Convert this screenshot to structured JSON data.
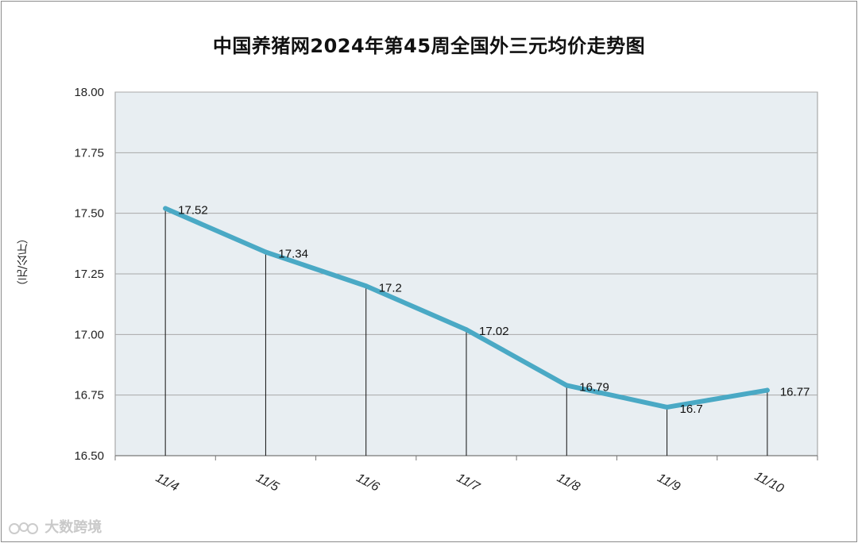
{
  "title": "中国养猪网2024年第45周全国外三元均价走势图",
  "watermark": "大数跨境",
  "colors": {
    "line": "#4aa9c5",
    "plot_bg": "#e8eef2",
    "grid": "#a8a8a8",
    "drop": "#111111"
  },
  "chart_data": {
    "type": "line",
    "title": "中国养猪网2024年第45周全国外三元均价走势图",
    "xlabel": "",
    "ylabel": "（元/公斤）",
    "categories": [
      "11/4",
      "11/5",
      "11/6",
      "11/7",
      "11/8",
      "11/9",
      "11/10"
    ],
    "values": [
      17.52,
      17.34,
      17.2,
      17.02,
      16.79,
      16.7,
      16.77
    ],
    "data_labels": [
      "17.52",
      "17.34",
      "17.2",
      "17.02",
      "16.79",
      "16.7",
      "16.77"
    ],
    "ylim": [
      16.5,
      18.0
    ],
    "yticks": [
      "16.50",
      "16.75",
      "17.00",
      "17.25",
      "17.50",
      "17.75",
      "18.00"
    ],
    "grid": true,
    "drop_lines": true,
    "legend": "none"
  }
}
